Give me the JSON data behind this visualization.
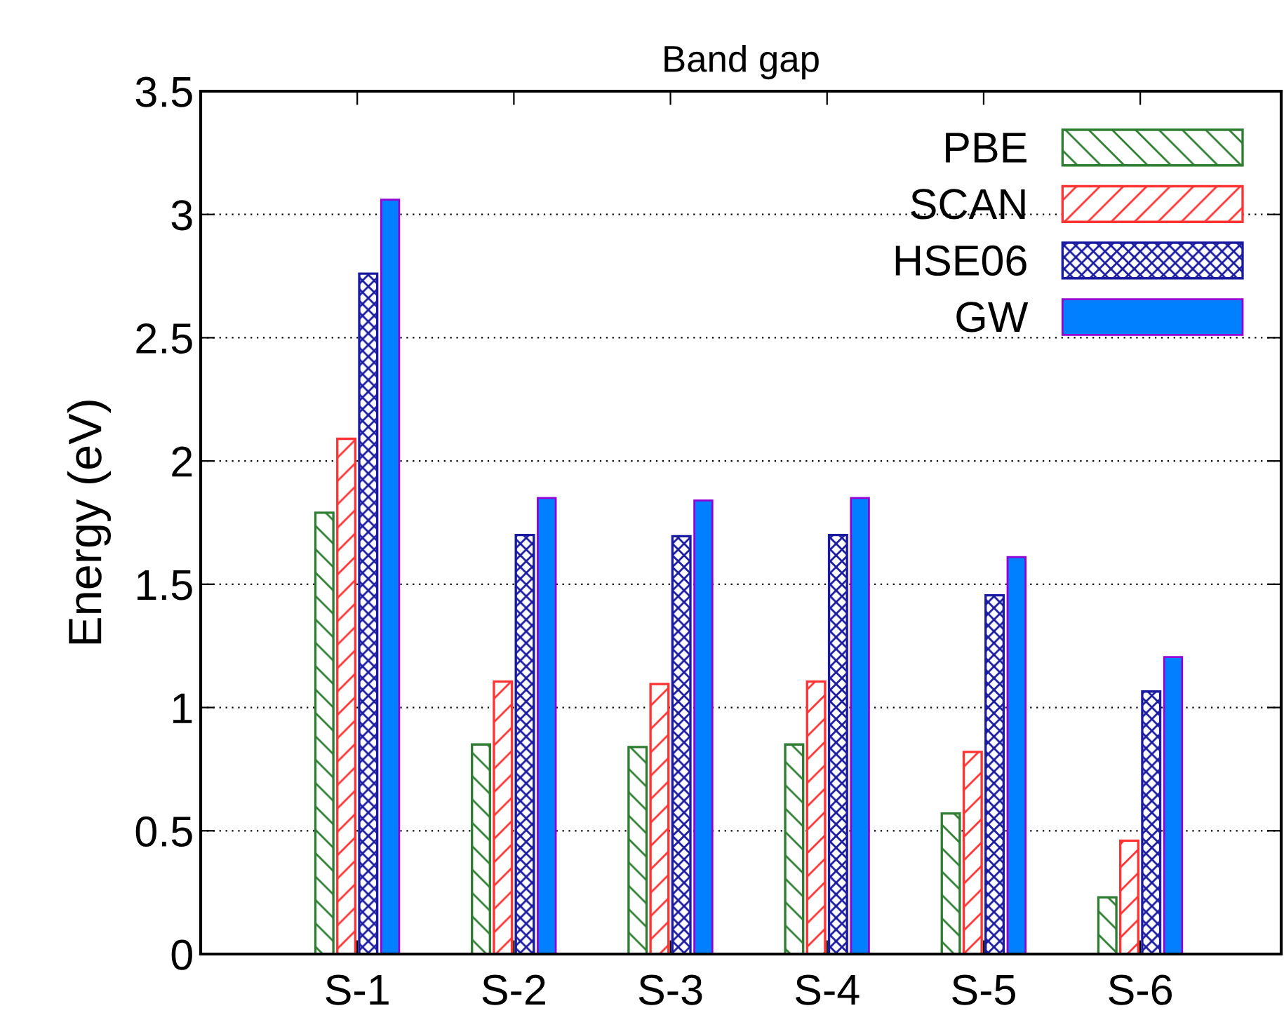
{
  "chart_data": {
    "type": "bar",
    "title": "Band gap",
    "ylabel": "Energy (eV)",
    "categories": [
      "S-1",
      "S-2",
      "S-3",
      "S-4",
      "S-5",
      "S-6"
    ],
    "series": [
      {
        "name": "PBE",
        "color": "#2e7d32",
        "values": [
          1.79,
          0.85,
          0.84,
          0.85,
          0.57,
          0.23
        ]
      },
      {
        "name": "SCAN",
        "color": "#ff3333",
        "values": [
          2.09,
          1.105,
          1.095,
          1.105,
          0.82,
          0.46
        ]
      },
      {
        "name": "HSE06",
        "color": "#1a1aa0",
        "values": [
          2.76,
          1.7,
          1.695,
          1.7,
          1.455,
          1.065
        ]
      },
      {
        "name": "GW",
        "color": "#0080ff",
        "values": [
          3.06,
          1.85,
          1.84,
          1.85,
          1.61,
          1.205
        ]
      }
    ],
    "ylim": [
      0,
      3.5
    ],
    "yticks": [
      0,
      0.5,
      1,
      1.5,
      2,
      2.5,
      3,
      3.5
    ],
    "grid": "y",
    "legend": "top right"
  }
}
